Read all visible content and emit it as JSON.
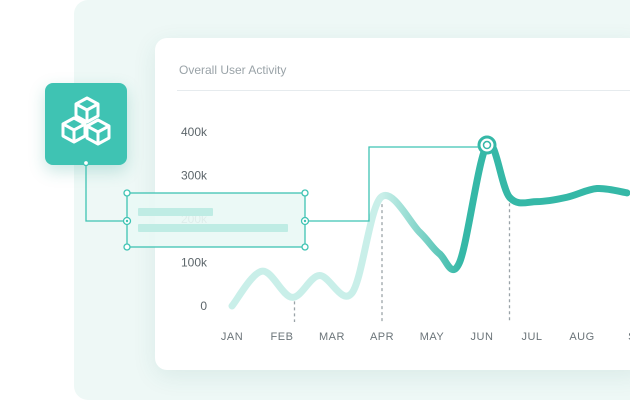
{
  "card": {
    "title": "Overall User Activity"
  },
  "icons": {
    "logo": "cubes-icon"
  },
  "colors": {
    "accent": "#3fc3b3",
    "line_light": "#c9efe9",
    "line_dark": "#35b8a7"
  },
  "chart_data": {
    "type": "line",
    "title": "Overall User Activity",
    "xlabel": "",
    "ylabel": "",
    "categories": [
      "JAN",
      "FEB",
      "MAR",
      "APR",
      "MAY",
      "JUN",
      "JUL",
      "AUG",
      "S"
    ],
    "yticks": [
      "0",
      "100k",
      "200k",
      "300k",
      "400k"
    ],
    "ylim": [
      0,
      400000
    ],
    "grid": false,
    "x": [
      0,
      0.6,
      1.2,
      1.75,
      2.4,
      2.98,
      3.75,
      4.15,
      4.55,
      5.1,
      5.55,
      6.1,
      6.7,
      7.3,
      7.9
    ],
    "values": [
      0,
      80000,
      20000,
      70000,
      30000,
      250000,
      170000,
      120000,
      100000,
      370000,
      250000,
      240000,
      250000,
      270000,
      260000
    ],
    "highlight_index": 9,
    "reference_x": [
      1.25,
      3.0,
      5.55
    ]
  }
}
